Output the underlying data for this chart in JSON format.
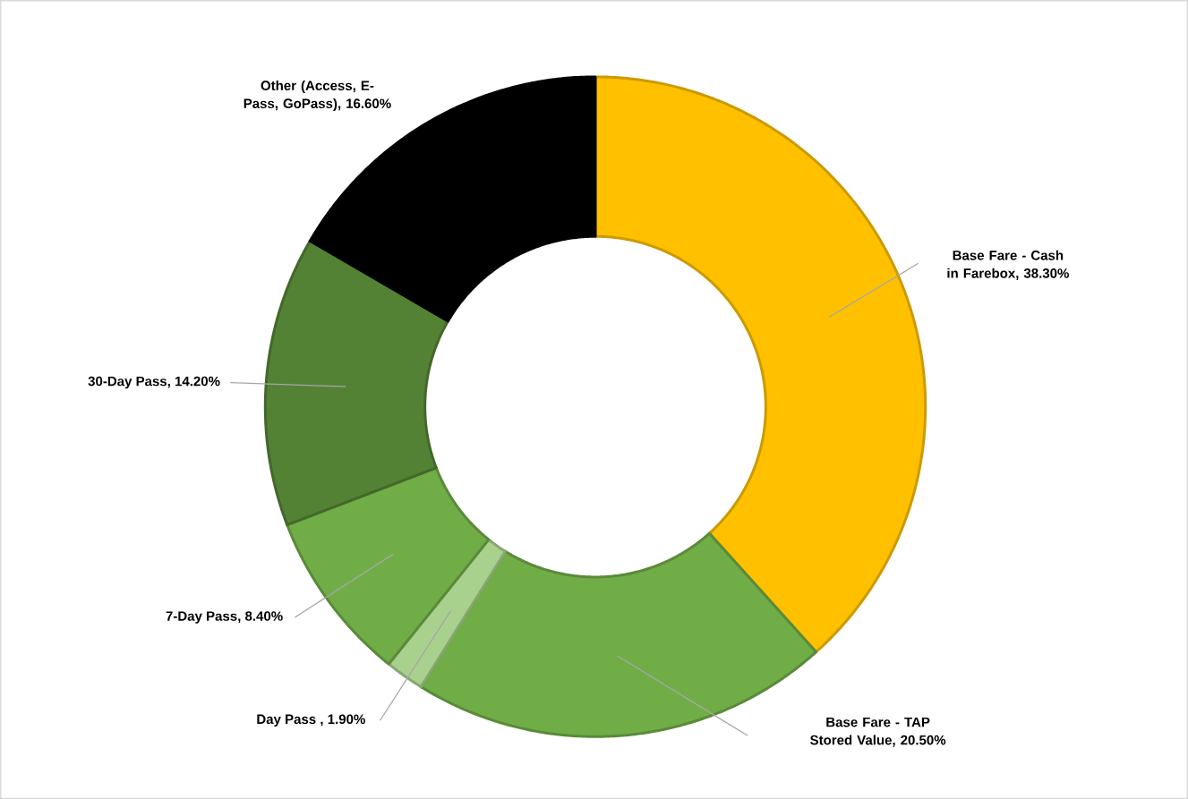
{
  "chart_data": {
    "type": "donut",
    "categories": [
      "Base Fare - Cash in Farebox",
      "Base Fare - TAP Stored Value",
      "Day Pass ",
      "7-Day Pass",
      "30-Day Pass",
      "Other (Access, E-Pass, GoPass)"
    ],
    "values": [
      38.3,
      20.5,
      1.9,
      8.4,
      14.2,
      16.6
    ],
    "colors": [
      "#ffc000",
      "#70ad47",
      "#a9d18e",
      "#70ad47",
      "#548235",
      "#000000"
    ],
    "value_labels": [
      ", 38.30%",
      ", 20.50%",
      ", 1.90%",
      ", 8.40%",
      ", 14.20%",
      ", 16.60%"
    ]
  }
}
